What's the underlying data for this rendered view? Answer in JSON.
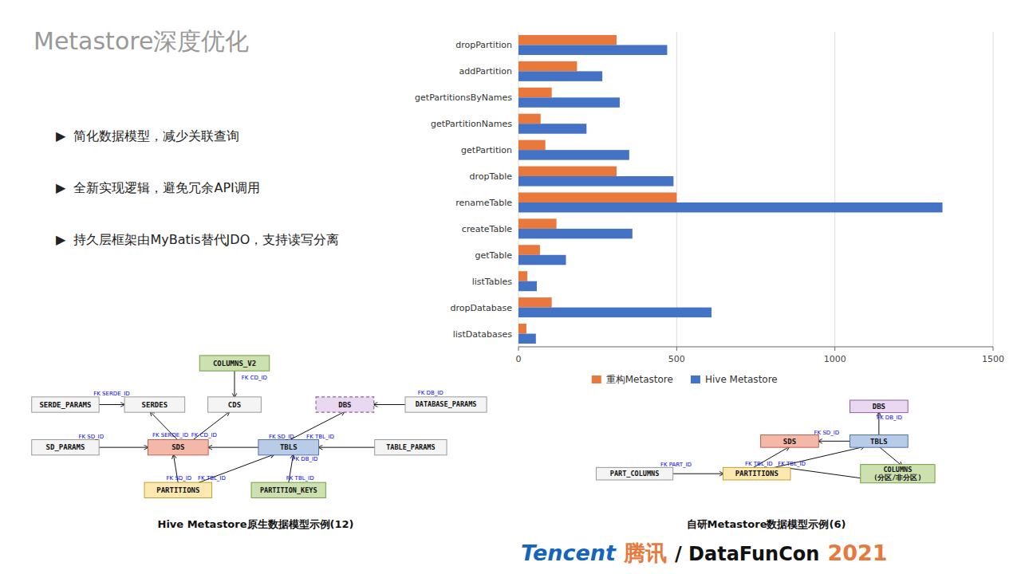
{
  "chart_data": {
    "type": "bar",
    "orientation": "horizontal",
    "title": "Metastore深度优化",
    "categories": [
      "dropPartition",
      "addPartition",
      "getPartitionsByNames",
      "getPartitionNames",
      "getPartition",
      "dropTable",
      "renameTable",
      "createTable",
      "getTable",
      "listTables",
      "dropDatabase",
      "listDatabases"
    ],
    "series": [
      {
        "name": "重构Metastore",
        "color": "#E8783C",
        "values": [
          310,
          185,
          105,
          70,
          85,
          310,
          500,
          120,
          68,
          28,
          105,
          25
        ]
      },
      {
        "name": "Hive Metastore",
        "color": "#4472C4",
        "values": [
          470,
          265,
          320,
          215,
          350,
          490,
          1340,
          360,
          150,
          58,
          610,
          55
        ]
      }
    ],
    "xlim": [
      0,
      1500
    ],
    "xticks": [
      0,
      500,
      1000,
      1500
    ],
    "grid": true,
    "legend": "bottom",
    "annotations": [
      "▶  简化数据模型，减少关联查询",
      "▶  全新实现逻辑，避免冗余API调用",
      "▶  持久层框架由MyBatis替代JDO，支持读写分离",
      "COLUMNS_V2",
      "SERDE_PARAMS",
      "SERDES",
      "CDS",
      "DBS",
      "DATABASE_PARAMS",
      "SD_PARAMS",
      "SDS",
      "TBLS",
      "TABLE_PARAMS",
      "PARTITIONS",
      "PARTITION_KEYS",
      "FK SERDE_ID",
      "FK CD_ID",
      "FK SERDE_ID",
      "FK CD_ID",
      "FK SD_ID",
      "FK DB_ID",
      "FK SD_ID",
      "FK TBL_ID",
      "FK SD_ID",
      "FK TBL_ID",
      "FK TBL_ID",
      "FK DB_ID",
      "Hive Metastore原生数据模型示例(12)",
      "DBS",
      "SDS",
      "TBLS",
      "PART_COLUMNS",
      "PARTITIONS",
      "COLUMNS\n(分区/非分区)",
      "FK DB_ID",
      "FK SD_ID",
      "FK PART_ID",
      "FK TBL_ID",
      "FK TBL_ID",
      "自研Metastore数据模型示例(6)",
      "Tencent",
      "腾讯",
      "/ DataFunCon",
      "2021"
    ]
  }
}
